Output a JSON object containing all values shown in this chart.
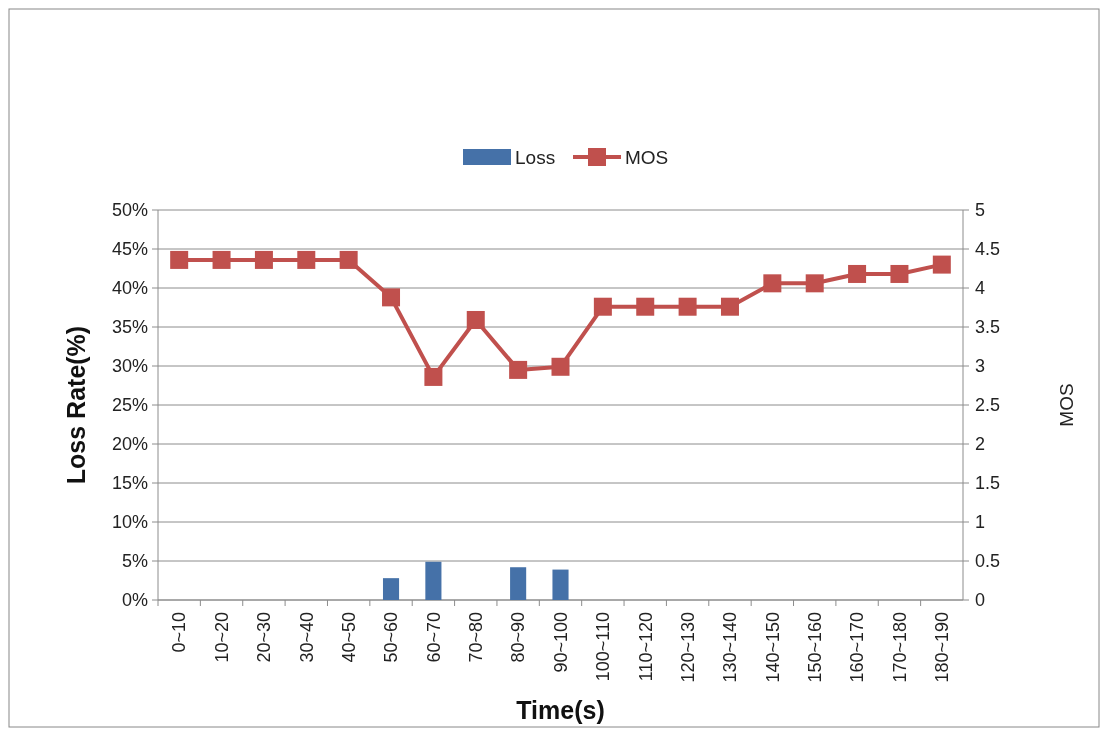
{
  "chart_data": {
    "type": "bar",
    "xlabel": "Time(s)",
    "ylabel": "Loss Rate(%)",
    "y2label": "MOS",
    "categories": [
      "0~10",
      "10~20",
      "20~30",
      "30~40",
      "40~50",
      "50~60",
      "60~70",
      "70~80",
      "80~90",
      "90~100",
      "100~110",
      "110~120",
      "120~130",
      "130~140",
      "140~150",
      "150~160",
      "160~170",
      "170~180",
      "180~190"
    ],
    "series": [
      {
        "name": "Loss",
        "color": "#4571a8",
        "values": [
          0,
          0,
          0,
          0,
          0,
          2.8,
          4.9,
          0,
          4.2,
          3.9,
          0,
          0,
          0,
          0,
          0,
          0,
          0,
          0,
          0
        ]
      },
      {
        "name": "MOS",
        "type": "line",
        "axis": "y2",
        "color": "#c0504d",
        "marker": "square",
        "values": [
          4.36,
          4.36,
          4.36,
          4.36,
          4.36,
          3.88,
          2.86,
          3.59,
          2.95,
          2.99,
          3.76,
          3.76,
          3.76,
          3.76,
          4.06,
          4.06,
          4.18,
          4.18,
          4.3
        ]
      }
    ],
    "ylim": [
      0,
      50
    ],
    "yticks": [
      {
        "value": 0,
        "label": "0%"
      },
      {
        "value": 5,
        "label": "5%"
      },
      {
        "value": 10,
        "label": "10%"
      },
      {
        "value": 15,
        "label": "15%"
      },
      {
        "value": 20,
        "label": "20%"
      },
      {
        "value": 25,
        "label": "25%"
      },
      {
        "value": 30,
        "label": "30%"
      },
      {
        "value": 35,
        "label": "35%"
      },
      {
        "value": 40,
        "label": "40%"
      },
      {
        "value": 45,
        "label": "45%"
      },
      {
        "value": 50,
        "label": "50%"
      }
    ],
    "y2lim": [
      0,
      5
    ],
    "y2ticks": [
      0,
      0.5,
      1,
      1.5,
      2,
      2.5,
      3,
      3.5,
      4,
      4.5,
      5
    ],
    "grid": "y",
    "legend": "top"
  }
}
